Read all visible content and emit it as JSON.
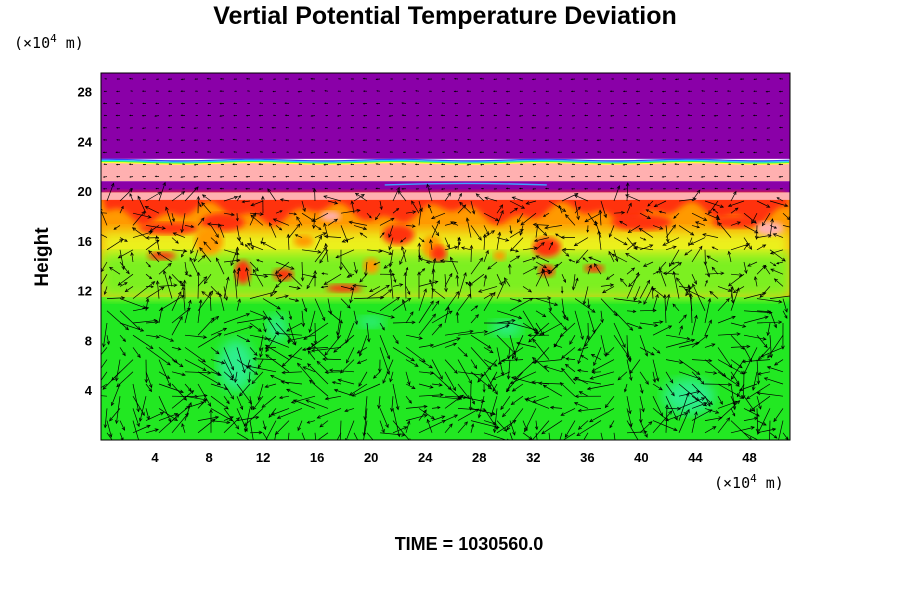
{
  "chart_data": {
    "type": "heatmap",
    "title": "Vertial Potential Temperature Deviation",
    "ylabel": "Height",
    "x_unit_prefix": "(×10",
    "x_unit_exp": "4",
    "x_unit_suffix": " m)",
    "y_unit_prefix": "(×10",
    "y_unit_exp": "4",
    "y_unit_suffix": " m)",
    "xlim": [
      0,
      51
    ],
    "ylim": [
      0,
      29.5
    ],
    "x_ticks": [
      4,
      8,
      12,
      16,
      20,
      24,
      28,
      32,
      36,
      40,
      44,
      48
    ],
    "y_ticks": [
      4,
      8,
      12,
      16,
      20,
      24,
      28
    ],
    "time_label": "TIME = 1030560.0",
    "overlay": "wind vector arrows",
    "colors": {
      "top_layer": "#8a00a8",
      "band_pink": "#ffb0b0",
      "band_red": "#ff3010",
      "band_orange": "#ff9a00",
      "band_yellow": "#e8ff20",
      "lower_green": "#22e822",
      "cyan_patch": "#30f0b0"
    },
    "layers": [
      {
        "name": "purple-top",
        "y_from": 22.6,
        "y_to": 29.5
      },
      {
        "name": "pink-band",
        "y_from": 20.8,
        "y_to": 22.5
      },
      {
        "name": "purple-thin",
        "y_from": 19.9,
        "y_to": 20.8
      },
      {
        "name": "turbulent-warm",
        "y_from": 11.5,
        "y_to": 19.9
      },
      {
        "name": "green-lower",
        "y_from": 0,
        "y_to": 11.5
      }
    ]
  }
}
